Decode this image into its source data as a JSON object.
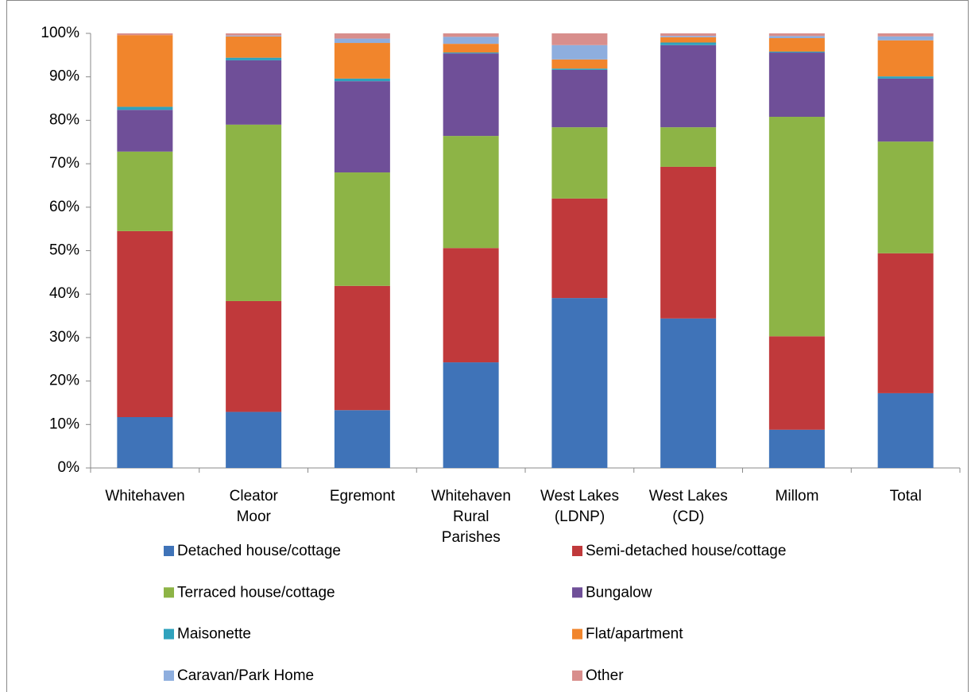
{
  "chart_data": {
    "type": "stacked_bar",
    "categories": [
      "Whitehaven",
      "Cleator\nMoor",
      "Egremont",
      "Whitehaven\nRural\nParishes",
      "West Lakes\n(LDNP)",
      "West Lakes\n(CD)",
      "Millom",
      "Total"
    ],
    "series": [
      {
        "name": "Detached house/cottage",
        "color": "#3f73b8",
        "values": [
          11.7,
          12.9,
          13.3,
          24.3,
          39.1,
          34.4,
          8.8,
          17.2
        ]
      },
      {
        "name": "Semi-detached house/cottage",
        "color": "#c0393b",
        "values": [
          42.8,
          25.5,
          28.6,
          26.3,
          22.9,
          34.9,
          21.5,
          32.2
        ]
      },
      {
        "name": "Terraced house/cottage",
        "color": "#8db446",
        "values": [
          18.3,
          40.6,
          26.1,
          25.8,
          16.4,
          9.1,
          50.5,
          25.7
        ]
      },
      {
        "name": "Bungalow",
        "color": "#6f4f98",
        "values": [
          9.6,
          14.8,
          21.0,
          19.0,
          13.2,
          18.9,
          14.8,
          14.5
        ]
      },
      {
        "name": "Maisonette",
        "color": "#2fa2bd",
        "values": [
          0.7,
          0.6,
          0.6,
          0.2,
          0.3,
          0.6,
          0.2,
          0.5
        ]
      },
      {
        "name": "Flat/apartment",
        "color": "#f1852c",
        "values": [
          16.5,
          4.9,
          8.2,
          2.0,
          2.1,
          1.2,
          3.1,
          8.3
        ]
      },
      {
        "name": "Caravan/Park Home",
        "color": "#8eaede",
        "values": [
          0.0,
          0.2,
          1.0,
          1.6,
          3.3,
          0.3,
          0.5,
          0.9
        ]
      },
      {
        "name": "Other",
        "color": "#d88e8c",
        "values": [
          0.4,
          0.5,
          1.2,
          0.8,
          2.7,
          0.6,
          0.6,
          0.7
        ]
      }
    ],
    "ylim": [
      0,
      100
    ],
    "yticks": [
      {
        "value": 0,
        "label": "0%"
      },
      {
        "value": 10,
        "label": "10%"
      },
      {
        "value": 20,
        "label": "20%"
      },
      {
        "value": 30,
        "label": "30%"
      },
      {
        "value": 40,
        "label": "40%"
      },
      {
        "value": 50,
        "label": "50%"
      },
      {
        "value": 60,
        "label": "60%"
      },
      {
        "value": 70,
        "label": "70%"
      },
      {
        "value": 80,
        "label": "80%"
      },
      {
        "value": 90,
        "label": "90%"
      },
      {
        "value": 100,
        "label": "100%"
      }
    ],
    "grid": false,
    "legend": "bottom"
  }
}
